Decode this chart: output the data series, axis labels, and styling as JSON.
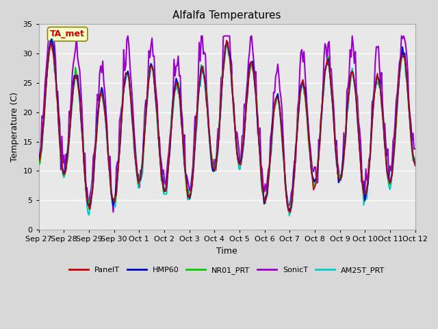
{
  "title": "Alfalfa Temperatures",
  "xlabel": "Time",
  "ylabel": "Temperature (C)",
  "ylim": [
    0,
    35
  ],
  "yticks": [
    0,
    5,
    10,
    15,
    20,
    25,
    30,
    35
  ],
  "annotation": "TA_met",
  "fig_bg_color": "#d8d8d8",
  "plot_bg_color": "#e8e8e8",
  "series_colors": {
    "PanelT": "#cc0000",
    "HMP60": "#0000cc",
    "NR01_PRT": "#00cc00",
    "SonicT": "#9900cc",
    "AM25T_PRT": "#00cccc"
  },
  "series_linewidths": {
    "PanelT": 1.2,
    "HMP60": 1.5,
    "NR01_PRT": 1.5,
    "SonicT": 1.5,
    "AM25T_PRT": 1.5
  },
  "n_days": 15,
  "xtick_labels": [
    "Sep 27",
    "Sep 28",
    "Sep 29",
    "Sep 30",
    "Oct 1",
    "Oct 2",
    "Oct 3",
    "Oct 4",
    "Oct 5",
    "Oct 6",
    "Oct 7",
    "Oct 8",
    "Oct 9",
    "Oct 10",
    "Oct 11",
    "Oct 12"
  ],
  "grid_color": "#ffffff"
}
